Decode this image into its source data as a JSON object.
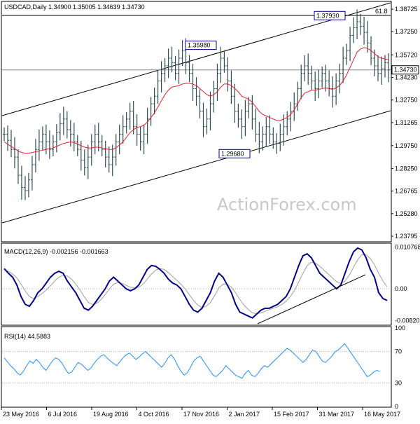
{
  "header": {
    "symbol_line": "USDCAD,Daily  1.34900 1.35005 1.34639 1.34730"
  },
  "watermark": "ActionForex.com",
  "colors": {
    "price_bar": "#2F4F4F",
    "sma": "#E0202A",
    "macd": "#00008B",
    "signal": "#A0A0A0",
    "rsi": "#1E90FF",
    "channel": "#000000",
    "grid_dot": "#B0B0B0"
  },
  "chart_data": [
    {
      "type": "ohlc",
      "panel": "price",
      "title": "USDCAD,Daily  1.34900 1.35005 1.34639 1.34730",
      "y_ticks": [
        "1.38725",
        "1.37250",
        "1.35720",
        "1.34230",
        "1.32750",
        "1.31265",
        "1.29750",
        "1.28250",
        "1.26765",
        "1.25280",
        "1.23795"
      ],
      "ylim": [
        1.2352,
        1.3905
      ],
      "last_price": "1.34730",
      "fib_label": "61.8",
      "annotations": [
        {
          "label": "1.37930",
          "value": 1.3793
        },
        {
          "label": "1.35980",
          "value": 1.3598
        },
        {
          "label": "1.29680",
          "value": 1.2968
        }
      ],
      "series": [
        {
          "kind": "price_path",
          "values": [
            1.305,
            1.301,
            1.295,
            1.29,
            1.278,
            1.27,
            1.268,
            1.275,
            1.285,
            1.295,
            1.3,
            1.305,
            1.3,
            1.295,
            1.3,
            1.306,
            1.312,
            1.315,
            1.308,
            1.305,
            1.3,
            1.295,
            1.288,
            1.283,
            1.29,
            1.3,
            1.305,
            1.3,
            1.295,
            1.29,
            1.285,
            1.29,
            1.3,
            1.305,
            1.31,
            1.315,
            1.32,
            1.31,
            1.305,
            1.3,
            1.305,
            1.315,
            1.325,
            1.33,
            1.34,
            1.345,
            1.35,
            1.355,
            1.352,
            1.345,
            1.355,
            1.36,
            1.352,
            1.345,
            1.335,
            1.33,
            1.32,
            1.31,
            1.315,
            1.325,
            1.335,
            1.345,
            1.355,
            1.35,
            1.34,
            1.33,
            1.32,
            1.315,
            1.31,
            1.32,
            1.325,
            1.315,
            1.305,
            1.3,
            1.305,
            1.31,
            1.305,
            1.3,
            1.299,
            1.305,
            1.31,
            1.315,
            1.32,
            1.325,
            1.335,
            1.345,
            1.35,
            1.345,
            1.34,
            1.335,
            1.34,
            1.345,
            1.34,
            1.335,
            1.33,
            1.34,
            1.345,
            1.355,
            1.36,
            1.37,
            1.375,
            1.379,
            1.376,
            1.372,
            1.365,
            1.355,
            1.35,
            1.345,
            1.348,
            1.352,
            1.3473
          ]
        },
        {
          "kind": "sma_path",
          "values": [
            1.3,
            1.2985,
            1.297,
            1.2955,
            1.294,
            1.293,
            1.2925,
            1.2925,
            1.293,
            1.2935,
            1.294,
            1.2945,
            1.295,
            1.2955,
            1.296,
            1.297,
            1.298,
            1.299,
            1.2995,
            1.3,
            1.2995,
            1.2985,
            1.2975,
            1.2965,
            1.296,
            1.296,
            1.2965,
            1.2965,
            1.296,
            1.2955,
            1.295,
            1.295,
            1.296,
            1.298,
            1.3,
            1.303,
            1.306,
            1.308,
            1.3095,
            1.31,
            1.311,
            1.313,
            1.316,
            1.319,
            1.323,
            1.327,
            1.331,
            1.334,
            1.336,
            1.3365,
            1.337,
            1.338,
            1.3385,
            1.3385,
            1.338,
            1.337,
            1.335,
            1.333,
            1.331,
            1.33,
            1.331,
            1.333,
            1.336,
            1.338,
            1.338,
            1.337,
            1.335,
            1.333,
            1.33,
            1.329,
            1.328,
            1.326,
            1.323,
            1.32,
            1.318,
            1.317,
            1.316,
            1.315,
            1.314,
            1.314,
            1.315,
            1.316,
            1.318,
            1.321,
            1.325,
            1.329,
            1.332,
            1.333,
            1.334,
            1.334,
            1.3345,
            1.335,
            1.3355,
            1.335,
            1.3345,
            1.3355,
            1.337,
            1.34,
            1.344,
            1.349,
            1.354,
            1.359,
            1.361,
            1.362,
            1.3615,
            1.36,
            1.358,
            1.356,
            1.355,
            1.3545,
            1.354
          ]
        }
      ]
    },
    {
      "type": "line",
      "panel": "macd",
      "title": "MACD(12,26,9) -0.002156 -0.001663",
      "y_ticks": [
        "0.010768",
        "0.00",
        "-0.008203"
      ],
      "ylim": [
        -0.009,
        0.0112
      ],
      "series": [
        {
          "name": "MACD",
          "values": [
            0.0052,
            0.004,
            0.003,
            0.001,
            -0.002,
            -0.004,
            -0.0045,
            -0.003,
            -0.001,
            0.0,
            0.0015,
            0.003,
            0.004,
            0.0045,
            0.004,
            0.002,
            0.0005,
            -0.001,
            -0.003,
            -0.005,
            -0.0055,
            -0.0045,
            -0.003,
            -0.0015,
            0.0,
            0.002,
            0.003,
            0.002,
            0.001,
            0.0,
            -0.0005,
            0.0,
            0.001,
            0.003,
            0.005,
            0.006,
            0.0058,
            0.005,
            0.004,
            0.0025,
            0.0015,
            0.001,
            0.0,
            -0.002,
            -0.004,
            -0.0055,
            -0.006,
            -0.005,
            -0.003,
            -0.001,
            0.002,
            0.004,
            0.003,
            0.001,
            -0.001,
            -0.004,
            -0.006,
            -0.0065,
            -0.007,
            -0.0075,
            -0.0065,
            -0.0055,
            -0.005,
            -0.005,
            -0.0045,
            -0.004,
            -0.003,
            -0.002,
            0.0,
            0.003,
            0.006,
            0.0085,
            0.009,
            0.008,
            0.006,
            0.004,
            0.003,
            0.002,
            0.001,
            0.0,
            0.001,
            0.004,
            0.007,
            0.0095,
            0.0105,
            0.01,
            0.008,
            0.005,
            0.003,
            -0.001,
            -0.0025,
            -0.003
          ]
        },
        {
          "name": "Signal",
          "values": [
            0.005,
            0.0045,
            0.0038,
            0.0028,
            0.0012,
            -0.0005,
            -0.002,
            -0.0025,
            -0.002,
            -0.0012,
            -0.0003,
            0.0008,
            0.002,
            0.003,
            0.0035,
            0.0033,
            0.0025,
            0.0012,
            -0.0003,
            -0.002,
            -0.0035,
            -0.004,
            -0.0037,
            -0.0028,
            -0.0015,
            0.0,
            0.0012,
            0.0016,
            0.0014,
            0.0009,
            0.0004,
            0.0002,
            0.0004,
            0.0012,
            0.0025,
            0.0038,
            0.0048,
            0.0052,
            0.005,
            0.0042,
            0.0032,
            0.0022,
            0.0012,
            0.0,
            -0.0015,
            -0.003,
            -0.0042,
            -0.0048,
            -0.0045,
            -0.0035,
            -0.0018,
            0.0002,
            0.0012,
            0.0012,
            0.0004,
            -0.001,
            -0.0028,
            -0.0042,
            -0.0053,
            -0.0062,
            -0.0064,
            -0.0062,
            -0.0058,
            -0.0054,
            -0.005,
            -0.0046,
            -0.004,
            -0.0032,
            -0.002,
            -0.0004,
            0.0018,
            0.004,
            0.006,
            0.0068,
            0.0066,
            0.0058,
            0.0048,
            0.0038,
            0.0028,
            0.0018,
            0.0014,
            0.002,
            0.0035,
            0.0055,
            0.0075,
            0.0088,
            0.0088,
            0.0078,
            0.0062,
            0.004,
            0.002,
            0.0005
          ]
        }
      ]
    },
    {
      "type": "line",
      "panel": "rsi",
      "title": "RSI(14) 44.5883",
      "y_ticks": [
        "100",
        "70",
        "30",
        "0"
      ],
      "ylim": [
        0,
        100
      ],
      "series": [
        {
          "name": "RSI",
          "values": [
            62,
            57,
            52,
            48,
            43,
            40,
            45,
            52,
            58,
            55,
            60,
            56,
            50,
            46,
            52,
            58,
            62,
            60,
            55,
            48,
            42,
            44,
            50,
            56,
            54,
            50,
            46,
            49,
            55,
            60,
            64,
            66,
            62,
            58,
            55,
            52,
            57,
            62,
            66,
            68,
            64,
            60,
            63,
            67,
            70,
            66,
            62,
            58,
            54,
            50,
            55,
            62,
            66,
            60,
            52,
            45,
            40,
            43,
            50,
            58,
            62,
            64,
            58,
            52,
            46,
            40,
            38,
            42,
            46,
            52,
            48,
            44,
            40,
            38,
            36,
            42,
            46,
            40,
            38,
            42,
            48,
            52,
            50,
            54,
            58,
            62,
            66,
            70,
            74,
            72,
            68,
            64,
            60,
            56,
            60,
            66,
            72,
            70,
            64,
            58,
            56,
            60,
            64,
            70,
            72,
            76,
            80,
            74,
            68,
            62,
            56,
            50,
            44,
            38,
            40,
            44,
            46,
            44.6
          ]
        }
      ]
    }
  ],
  "x_axis": {
    "labels": [
      "23 May 2016",
      "6 Jul 2016",
      "19 Aug 2016",
      "4 Oct 2016",
      "17 Nov 2016",
      "2 Jan 2017",
      "15 Feb 2017",
      "31 Mar 2017",
      "16 May 2017"
    ]
  }
}
